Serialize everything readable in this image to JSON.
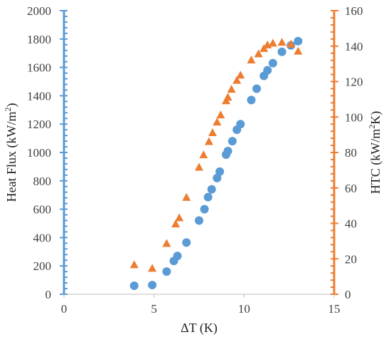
{
  "chart_data": {
    "type": "scatter",
    "x_axis": {
      "label": "ΔT (K)",
      "range": [
        0,
        15
      ],
      "ticks": [
        0,
        5,
        10,
        15
      ],
      "tick_labels": [
        "0",
        "5",
        "10",
        "15"
      ]
    },
    "y_axis_left": {
      "label": "Heat Flux (kW/m²)",
      "label_parts": {
        "prefix": "Heat Flux (kW/m",
        "sup": "2",
        "suffix": ")"
      },
      "range": [
        0,
        2000
      ],
      "ticks": [
        0,
        200,
        400,
        600,
        800,
        1000,
        1200,
        1400,
        1600,
        1800,
        2000
      ],
      "tick_labels": [
        "0",
        "200",
        "400",
        "600",
        "800",
        "1000",
        "1200",
        "1400",
        "1600",
        "1800",
        "2000"
      ],
      "color": "#5B9BD5"
    },
    "y_axis_right": {
      "label": "HTC (kW/m²K)",
      "label_parts": {
        "prefix": "HTC (kW/m",
        "sup": "2",
        "suffix": "K)"
      },
      "range": [
        0,
        160
      ],
      "ticks": [
        0,
        20,
        40,
        60,
        80,
        100,
        120,
        140,
        160
      ],
      "tick_labels": [
        "0",
        "20",
        "40",
        "60",
        "80",
        "100",
        "120",
        "140",
        "160"
      ],
      "color": "#ED7D31"
    },
    "grid": false,
    "legend": "none",
    "series": [
      {
        "axis": "left",
        "marker": "circle",
        "color": "#5B9BD5",
        "points": [
          {
            "x": 3.9,
            "y": 60
          },
          {
            "x": 4.9,
            "y": 65
          },
          {
            "x": 5.7,
            "y": 160
          },
          {
            "x": 6.1,
            "y": 235
          },
          {
            "x": 6.3,
            "y": 270
          },
          {
            "x": 6.8,
            "y": 365
          },
          {
            "x": 7.5,
            "y": 520
          },
          {
            "x": 7.8,
            "y": 600
          },
          {
            "x": 8.0,
            "y": 685
          },
          {
            "x": 8.2,
            "y": 740
          },
          {
            "x": 8.5,
            "y": 820
          },
          {
            "x": 8.65,
            "y": 865
          },
          {
            "x": 9.0,
            "y": 985
          },
          {
            "x": 9.1,
            "y": 1010
          },
          {
            "x": 9.35,
            "y": 1080
          },
          {
            "x": 9.6,
            "y": 1160
          },
          {
            "x": 9.8,
            "y": 1200
          },
          {
            "x": 10.4,
            "y": 1370
          },
          {
            "x": 10.7,
            "y": 1450
          },
          {
            "x": 11.1,
            "y": 1540
          },
          {
            "x": 11.3,
            "y": 1580
          },
          {
            "x": 11.6,
            "y": 1630
          },
          {
            "x": 12.1,
            "y": 1710
          },
          {
            "x": 12.6,
            "y": 1755
          },
          {
            "x": 13.0,
            "y": 1785
          }
        ]
      },
      {
        "axis": "right",
        "marker": "triangle",
        "color": "#ED7D31",
        "points": [
          {
            "x": 3.9,
            "y": 16.5
          },
          {
            "x": 4.9,
            "y": 14.5
          },
          {
            "x": 5.7,
            "y": 28.5
          },
          {
            "x": 6.2,
            "y": 39.5
          },
          {
            "x": 6.4,
            "y": 43
          },
          {
            "x": 6.8,
            "y": 54.5
          },
          {
            "x": 7.5,
            "y": 71.5
          },
          {
            "x": 7.75,
            "y": 78.5
          },
          {
            "x": 8.05,
            "y": 86
          },
          {
            "x": 8.25,
            "y": 91
          },
          {
            "x": 8.5,
            "y": 97
          },
          {
            "x": 8.7,
            "y": 101
          },
          {
            "x": 9.0,
            "y": 109
          },
          {
            "x": 9.1,
            "y": 111
          },
          {
            "x": 9.3,
            "y": 115.5
          },
          {
            "x": 9.6,
            "y": 120.5
          },
          {
            "x": 9.8,
            "y": 123.5
          },
          {
            "x": 10.4,
            "y": 132
          },
          {
            "x": 10.8,
            "y": 135.5
          },
          {
            "x": 11.1,
            "y": 138.5
          },
          {
            "x": 11.3,
            "y": 140.5
          },
          {
            "x": 11.6,
            "y": 141.5
          },
          {
            "x": 12.1,
            "y": 142
          },
          {
            "x": 12.6,
            "y": 141
          },
          {
            "x": 13.0,
            "y": 137
          }
        ]
      }
    ]
  }
}
